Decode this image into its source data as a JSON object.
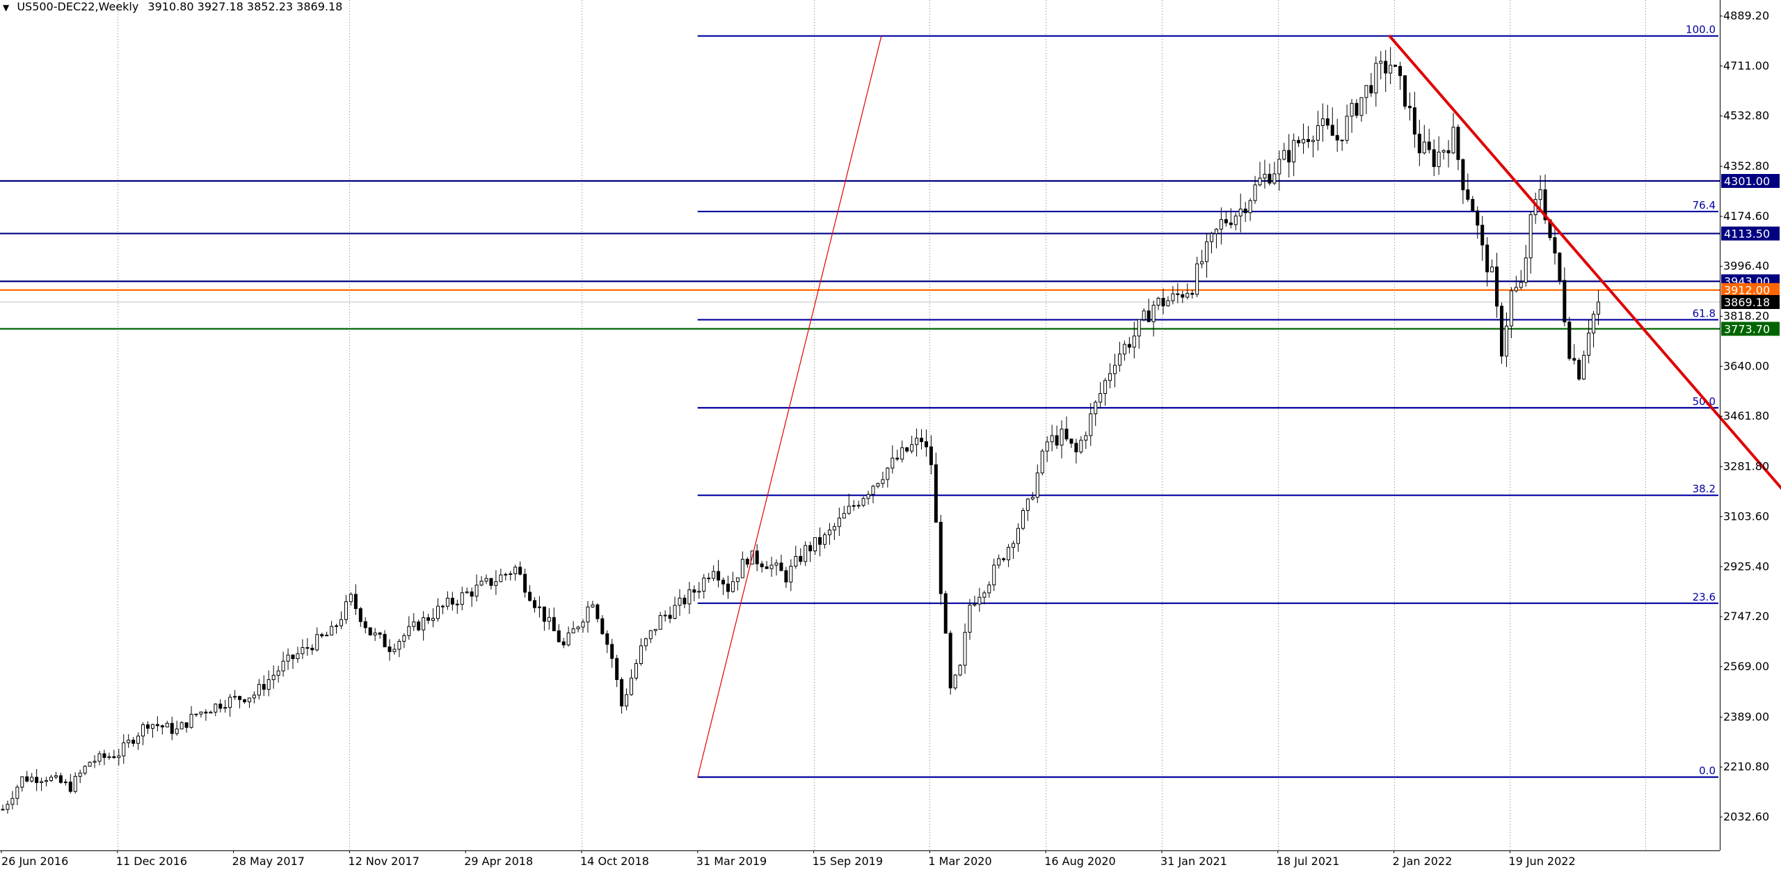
{
  "header": {
    "symbol": "US500-DEC22,Weekly",
    "ohlc": "3910.80 3927.18 3852.23 3869.18",
    "menu_arrow": "chevron-down-icon"
  },
  "colors": {
    "background": "#ffffff",
    "candle_up": "#ffffff",
    "candle_down": "#000000",
    "candle_outline": "#000000",
    "fib_line": "#0000a0",
    "resistance_line": "#000080",
    "trend_line": "#e00000",
    "bid_line": "#ff6600",
    "support_line": "#006400",
    "grid": "#808080"
  },
  "chart_data": {
    "type": "candlestick",
    "instrument": "US500-DEC22",
    "timeframe": "Weekly",
    "last_ohlc": {
      "open": 3910.8,
      "high": 3927.18,
      "low": 3852.23,
      "close": 3869.18
    },
    "ylim": [
      1950,
      4900
    ],
    "y_ticks": [
      "4889.20",
      "4711.00",
      "4532.80",
      "4352.80",
      "4174.60",
      "3996.40",
      "3818.20",
      "3640.00",
      "3461.80",
      "3281.80",
      "3103.60",
      "2925.40",
      "2747.20",
      "2569.00",
      "2389.00",
      "2210.80",
      "2032.60"
    ],
    "x_ticks": [
      {
        "label": "26 Jun 2016",
        "week": 0
      },
      {
        "label": "11 Dec 2016",
        "week": 24
      },
      {
        "label": "28 May 2017",
        "week": 48
      },
      {
        "label": "12 Nov 2017",
        "week": 72
      },
      {
        "label": "29 Apr 2018",
        "week": 96
      },
      {
        "label": "14 Oct 2018",
        "week": 120
      },
      {
        "label": "31 Mar 2019",
        "week": 144
      },
      {
        "label": "15 Sep 2019",
        "week": 168
      },
      {
        "label": "1 Mar 2020",
        "week": 192
      },
      {
        "label": "16 Aug 2020",
        "week": 216
      },
      {
        "label": "31 Jan 2021",
        "week": 240
      },
      {
        "label": "18 Jul 2021",
        "week": 264
      },
      {
        "label": "2 Jan 2022",
        "week": 288
      },
      {
        "label": "19 Jun 2022",
        "week": 312
      }
    ],
    "vertical_grid_weeks": [
      24,
      72,
      120,
      168,
      192,
      216,
      240,
      264,
      288,
      312,
      340
    ],
    "anchors": [
      [
        0,
        2060
      ],
      [
        4,
        2170
      ],
      [
        9,
        2175
      ],
      [
        14,
        2140
      ],
      [
        18,
        2230
      ],
      [
        24,
        2260
      ],
      [
        30,
        2370
      ],
      [
        36,
        2340
      ],
      [
        40,
        2400
      ],
      [
        46,
        2445
      ],
      [
        52,
        2470
      ],
      [
        58,
        2575
      ],
      [
        64,
        2650
      ],
      [
        68,
        2690
      ],
      [
        72,
        2810
      ],
      [
        76,
        2690
      ],
      [
        80,
        2640
      ],
      [
        86,
        2720
      ],
      [
        90,
        2770
      ],
      [
        96,
        2830
      ],
      [
        102,
        2880
      ],
      [
        106,
        2920
      ],
      [
        110,
        2800
      ],
      [
        116,
        2640
      ],
      [
        120,
        2750
      ],
      [
        122,
        2810
      ],
      [
        126,
        2600
      ],
      [
        128,
        2430
      ],
      [
        132,
        2630
      ],
      [
        136,
        2740
      ],
      [
        140,
        2790
      ],
      [
        144,
        2855
      ],
      [
        147,
        2930
      ],
      [
        150,
        2850
      ],
      [
        154,
        2960
      ],
      [
        158,
        2940
      ],
      [
        162,
        2890
      ],
      [
        166,
        2985
      ],
      [
        170,
        3025
      ],
      [
        176,
        3145
      ],
      [
        182,
        3260
      ],
      [
        186,
        3325
      ],
      [
        190,
        3380
      ],
      [
        192,
        3295
      ],
      [
        194,
        2850
      ],
      [
        196,
        2480
      ],
      [
        198,
        2560
      ],
      [
        200,
        2790
      ],
      [
        204,
        2880
      ],
      [
        208,
        3000
      ],
      [
        212,
        3140
      ],
      [
        216,
        3370
      ],
      [
        219,
        3390
      ],
      [
        222,
        3330
      ],
      [
        226,
        3500
      ],
      [
        230,
        3670
      ],
      [
        234,
        3750
      ],
      [
        238,
        3860
      ],
      [
        242,
        3880
      ],
      [
        246,
        3930
      ],
      [
        248,
        4015
      ],
      [
        252,
        4150
      ],
      [
        256,
        4200
      ],
      [
        260,
        4300
      ],
      [
        264,
        4360
      ],
      [
        268,
        4440
      ],
      [
        272,
        4500
      ],
      [
        276,
        4450
      ],
      [
        280,
        4570
      ],
      [
        284,
        4680
      ],
      [
        287,
        4720
      ],
      [
        290,
        4600
      ],
      [
        293,
        4420
      ],
      [
        296,
        4380
      ],
      [
        300,
        4460
      ],
      [
        302,
        4300
      ],
      [
        304,
        4210
      ],
      [
        306,
        4050
      ],
      [
        308,
        3960
      ],
      [
        310,
        3700
      ],
      [
        312,
        3900
      ],
      [
        314,
        3920
      ],
      [
        316,
        4150
      ],
      [
        318,
        4280
      ],
      [
        320,
        4100
      ],
      [
        322,
        3940
      ],
      [
        324,
        3700
      ],
      [
        326,
        3620
      ],
      [
        328,
        3780
      ],
      [
        330,
        3870
      ]
    ],
    "fib_levels": [
      {
        "label": "100.0",
        "price": 4818
      },
      {
        "label": "76.4",
        "price": 4192
      },
      {
        "label": "61.8",
        "price": 3806
      },
      {
        "label": "50.0",
        "price": 3492
      },
      {
        "label": "38.2",
        "price": 3180
      },
      {
        "label": "23.6",
        "price": 2795
      },
      {
        "label": "0.0",
        "price": 2175
      }
    ],
    "horizontal_levels": [
      {
        "label": "4301.00",
        "price": 4301.0,
        "kind": "resistance"
      },
      {
        "label": "4113.50",
        "price": 4113.5,
        "kind": "resistance"
      },
      {
        "label": "3943.00",
        "price": 3943.0,
        "kind": "resistance"
      },
      {
        "label": "3912.00",
        "price": 3912.0,
        "kind": "bid"
      },
      {
        "label": "3869.18",
        "price": 3869.18,
        "kind": "last"
      },
      {
        "label": "3773.70",
        "price": 3773.7,
        "kind": "support"
      }
    ],
    "trend_lines": [
      {
        "from": {
          "week": 144,
          "price": 2175
        },
        "to": {
          "week": 182,
          "price": 4818
        },
        "style": "thin"
      },
      {
        "from": {
          "week": 287,
          "price": 4820
        },
        "to": {
          "week": 390,
          "price": 2770
        },
        "style": "thick"
      }
    ],
    "fib_range": {
      "start_week": 144,
      "end_week": 392
    },
    "total_weeks": 392
  }
}
